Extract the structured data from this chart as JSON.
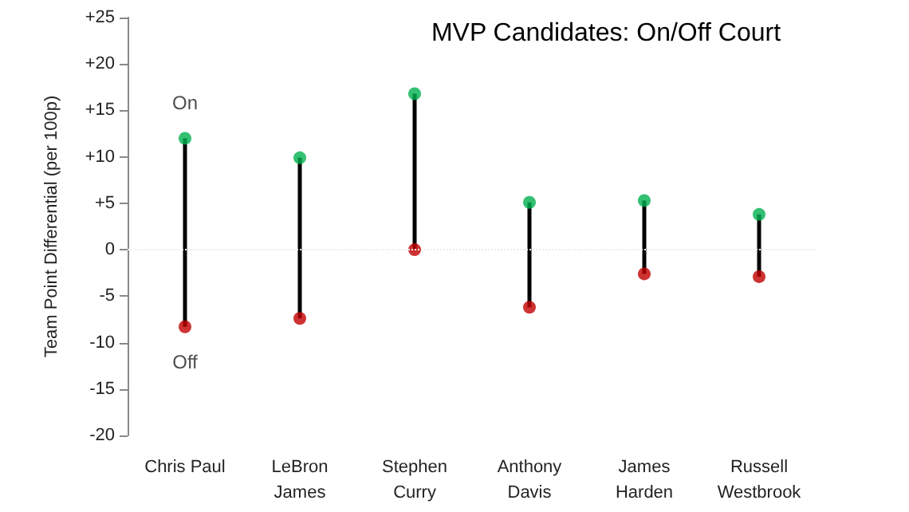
{
  "chart_data": {
    "type": "scatter",
    "title": "MVP Candidates: On/Off Court",
    "ylabel": "Team Point Differential (per 100p)",
    "categories": [
      "Chris Paul",
      "LeBron\nJames",
      "Stephen\nCurry",
      "Anthony\nDavis",
      "James\nHarden",
      "Russell\nWestbrook"
    ],
    "series": [
      {
        "name": "On",
        "color": "#00b050",
        "values": [
          12,
          9.9,
          16.8,
          5.1,
          5.3,
          3.8
        ]
      },
      {
        "name": "Off",
        "color": "#c00000",
        "values": [
          -8.3,
          -7.4,
          0,
          -6.2,
          -2.6,
          -2.9
        ]
      }
    ],
    "ylim": [
      -20,
      25
    ],
    "yticks": [
      -20,
      -15,
      -10,
      -5,
      0,
      {
        "value": 5,
        "label": "+5"
      },
      {
        "value": 10,
        "label": "+10"
      },
      {
        "value": 15,
        "label": "+15"
      },
      {
        "value": 20,
        "label": "+20"
      },
      {
        "value": 25,
        "label": "+25"
      }
    ],
    "ref_lines": [
      {
        "axis": "y",
        "value": 0,
        "color": "#eeeeee",
        "line_style": "dotted"
      }
    ],
    "grid": false,
    "legend": false,
    "marker": "circle"
  }
}
